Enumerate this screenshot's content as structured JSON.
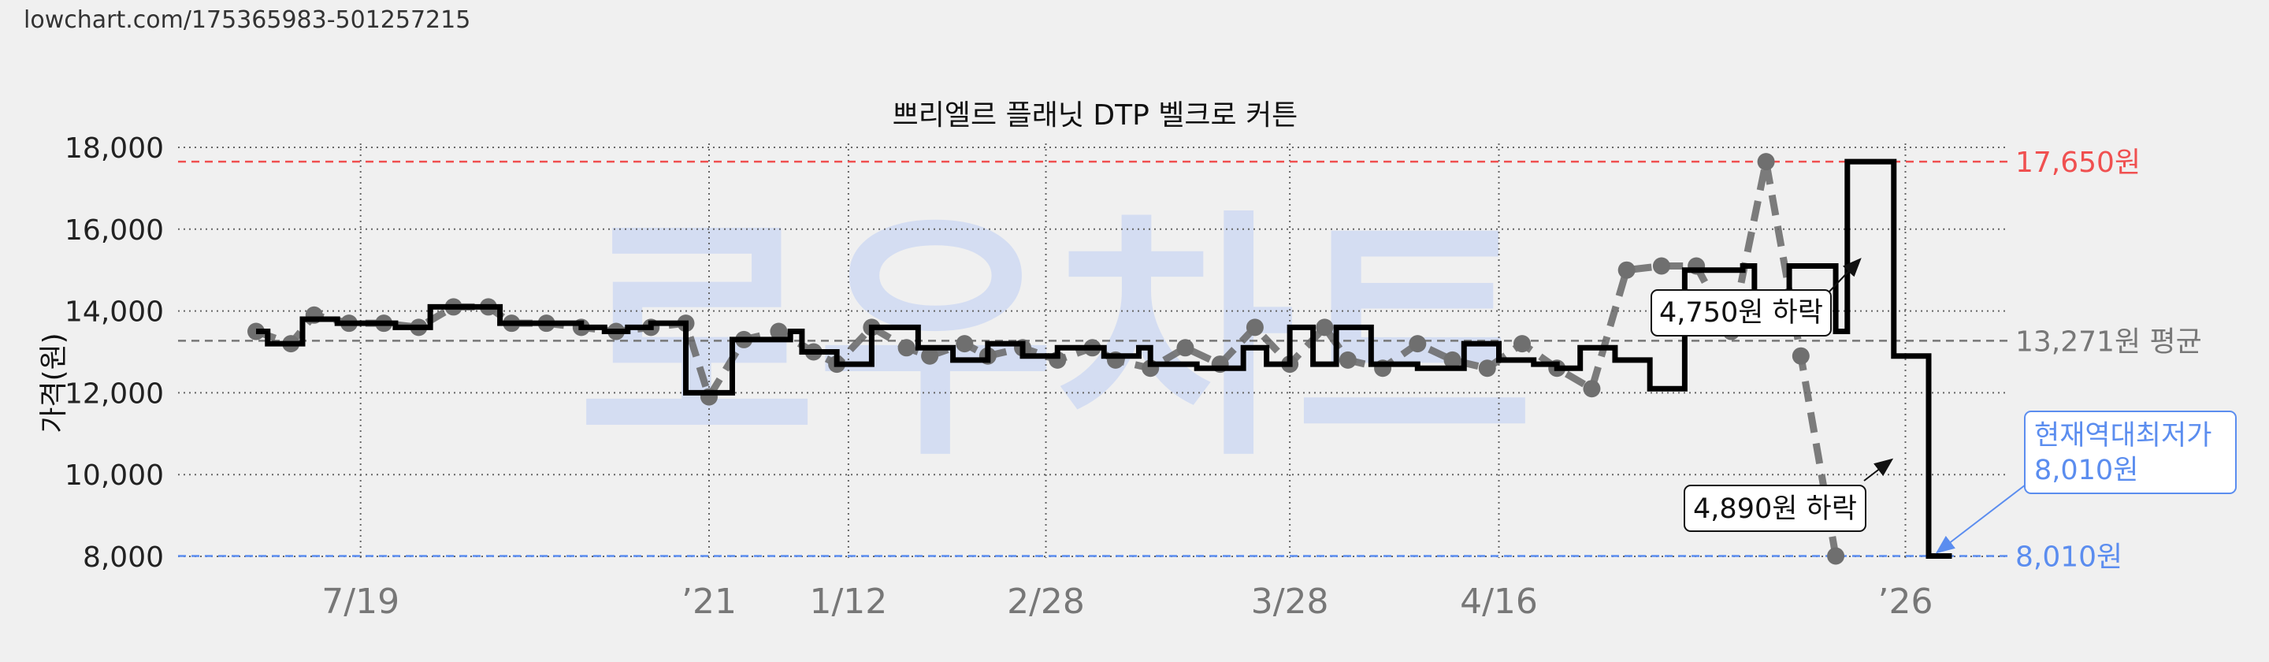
{
  "page": {
    "url": "lowchart.com/175365983-501257215"
  },
  "chart_data": {
    "type": "line",
    "title": "쁘리엘르 플래닛 DTP 벨크로 커튼",
    "ylabel": "가격(원)",
    "xlabel": "",
    "ylim": [
      8000,
      18000
    ],
    "yticks": [
      "8,000",
      "10,000",
      "12,000",
      "14,000",
      "16,000",
      "18,000"
    ],
    "ytick_values": [
      8000,
      10000,
      12000,
      14000,
      16000,
      18000
    ],
    "xticks": [
      "7/19",
      "’21",
      "1/12",
      "2/28",
      "3/28",
      "4/16",
      "’26"
    ],
    "xtick_styles": [
      "minor",
      "major",
      "minor",
      "minor",
      "minor",
      "minor",
      "major"
    ],
    "grid": true,
    "x_index_range": [
      0,
      72
    ],
    "xtick_positions": [
      4.5,
      19.5,
      25.5,
      34,
      44.5,
      53.5,
      71
    ],
    "series": [
      {
        "style": "step-line",
        "color": "#000000",
        "points": [
          [
            0,
            13500
          ],
          [
            0.5,
            13200
          ],
          [
            1.5,
            13200
          ],
          [
            2,
            13800
          ],
          [
            3,
            13800
          ],
          [
            3.5,
            13700
          ],
          [
            5,
            13700
          ],
          [
            6,
            13600
          ],
          [
            7,
            13600
          ],
          [
            7.5,
            14100
          ],
          [
            10,
            14100
          ],
          [
            10.5,
            13700
          ],
          [
            13,
            13700
          ],
          [
            14,
            13600
          ],
          [
            15,
            13500
          ],
          [
            16,
            13600
          ],
          [
            17,
            13700
          ],
          [
            18,
            13700
          ],
          [
            18.5,
            12000
          ],
          [
            20,
            12000
          ],
          [
            20.5,
            13300
          ],
          [
            22,
            13300
          ],
          [
            23,
            13500
          ],
          [
            23.5,
            13000
          ],
          [
            24,
            13000
          ],
          [
            25,
            12700
          ],
          [
            26,
            12700
          ],
          [
            26.5,
            13600
          ],
          [
            28,
            13600
          ],
          [
            28.5,
            13100
          ],
          [
            29,
            13100
          ],
          [
            30,
            12800
          ],
          [
            31,
            12800
          ],
          [
            31.5,
            13200
          ],
          [
            32,
            13200
          ],
          [
            33,
            12900
          ],
          [
            34,
            12900
          ],
          [
            34.5,
            13100
          ],
          [
            36,
            13100
          ],
          [
            36.5,
            12900
          ],
          [
            37,
            12900
          ],
          [
            38,
            13100
          ],
          [
            38.5,
            12700
          ],
          [
            40,
            12700
          ],
          [
            40.5,
            12600
          ],
          [
            42,
            12600
          ],
          [
            42.5,
            13100
          ],
          [
            43,
            13100
          ],
          [
            43.5,
            12700
          ],
          [
            44,
            12700
          ],
          [
            44.5,
            13600
          ],
          [
            45,
            13600
          ],
          [
            45.5,
            12700
          ],
          [
            46,
            12700
          ],
          [
            46.5,
            13600
          ],
          [
            47.5,
            13600
          ],
          [
            48,
            12700
          ],
          [
            49,
            12700
          ],
          [
            50,
            12600
          ],
          [
            51,
            12600
          ],
          [
            52,
            13200
          ],
          [
            53,
            13200
          ],
          [
            53.5,
            12800
          ],
          [
            54,
            12800
          ],
          [
            55,
            12700
          ],
          [
            56,
            12600
          ],
          [
            57,
            13100
          ],
          [
            58,
            13100
          ],
          [
            58.5,
            12800
          ],
          [
            59,
            12800
          ],
          [
            60,
            12100
          ],
          [
            61,
            12100
          ],
          [
            61.5,
            15000
          ],
          [
            63,
            15000
          ],
          [
            64,
            15100
          ],
          [
            64.5,
            14200
          ],
          [
            65,
            14200
          ],
          [
            66,
            15100
          ],
          [
            67,
            15100
          ],
          [
            68,
            13500
          ],
          [
            68.5,
            17650
          ],
          [
            70,
            17650
          ],
          [
            70.5,
            12900
          ],
          [
            71.5,
            12900
          ],
          [
            72,
            8010
          ],
          [
            73,
            8010
          ]
        ]
      },
      {
        "style": "dashed-trend",
        "color": "#666666",
        "points": [
          [
            0,
            13500
          ],
          [
            1.5,
            13200
          ],
          [
            2.5,
            13900
          ],
          [
            4,
            13700
          ],
          [
            5.5,
            13700
          ],
          [
            7,
            13600
          ],
          [
            8.5,
            14100
          ],
          [
            10,
            14100
          ],
          [
            11,
            13700
          ],
          [
            12.5,
            13700
          ],
          [
            14,
            13600
          ],
          [
            15.5,
            13500
          ],
          [
            17,
            13600
          ],
          [
            18.5,
            13700
          ],
          [
            19.5,
            11900
          ],
          [
            21,
            13300
          ],
          [
            22.5,
            13500
          ],
          [
            24,
            13000
          ],
          [
            25,
            12700
          ],
          [
            26.5,
            13600
          ],
          [
            28,
            13100
          ],
          [
            29,
            12900
          ],
          [
            30.5,
            13200
          ],
          [
            31.5,
            12900
          ],
          [
            33,
            13100
          ],
          [
            34.5,
            12800
          ],
          [
            36,
            13100
          ],
          [
            37,
            12800
          ],
          [
            38.5,
            12600
          ],
          [
            40,
            13100
          ],
          [
            41.5,
            12700
          ],
          [
            43,
            13600
          ],
          [
            44.5,
            12700
          ],
          [
            46,
            13600
          ],
          [
            47,
            12800
          ],
          [
            48.5,
            12600
          ],
          [
            50,
            13200
          ],
          [
            51.5,
            12800
          ],
          [
            53,
            12600
          ],
          [
            54.5,
            13200
          ],
          [
            56,
            12600
          ],
          [
            57.5,
            12100
          ],
          [
            59,
            15000
          ],
          [
            60.5,
            15100
          ],
          [
            62,
            15100
          ],
          [
            63.5,
            13500
          ],
          [
            65,
            17650
          ],
          [
            66.5,
            12900
          ],
          [
            68,
            8010
          ]
        ]
      }
    ],
    "reference_lines": [
      {
        "label": "17,650원",
        "value": 17650,
        "color": "#f05050"
      },
      {
        "label": "13,271원 평균",
        "value": 13271,
        "color": "#777777"
      },
      {
        "label": "8,010원",
        "value": 8010,
        "color": "#5b8def"
      }
    ],
    "annotations": [
      {
        "text": "4,750원 하락"
      },
      {
        "text": "4,890원 하락"
      },
      {
        "text": "현재역대최저가\n8,010원",
        "color": "#5b8def"
      }
    ],
    "watermark": "로우차트"
  }
}
